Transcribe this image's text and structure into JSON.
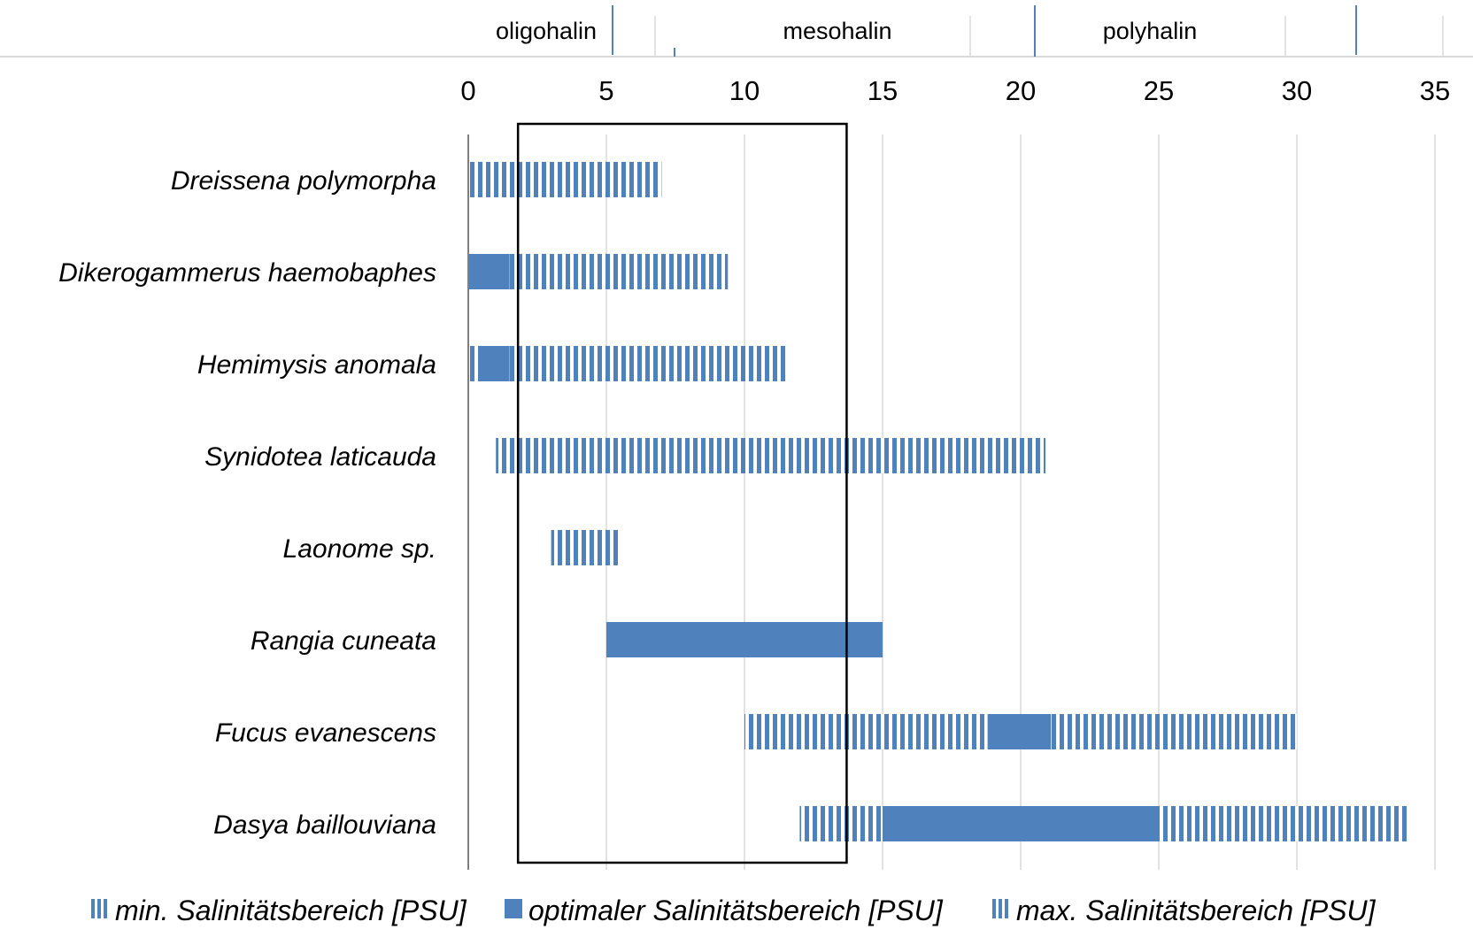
{
  "chart_data": {
    "type": "bar",
    "orientation": "horizontal-floating-range",
    "title": "",
    "xlabel": "",
    "ylabel": "",
    "xlim": [
      0,
      35
    ],
    "x_ticks": [
      "0",
      "5",
      "10",
      "15",
      "20",
      "25",
      "30",
      "35"
    ],
    "grid": "vertical",
    "legend_position": "bottom",
    "zones": [
      "oligohalin",
      "mesohalin",
      "polyhalin"
    ],
    "highlight_box": {
      "x_from": 1.8,
      "x_to": 13.7
    },
    "categories": [
      "Dreissena polymorpha",
      "Dikerogammerus haemobaphes",
      "Hemimysis anomala",
      "Synidotea laticauda",
      "Laonome sp.",
      "Rangia cuneata",
      "Fucus evanescens",
      "Dasya baillouviana"
    ],
    "series": [
      {
        "name": "min. Salinitätsbereich [PSU]",
        "style": "hatched",
        "ranges": [
          [
            0,
            1.7
          ],
          [
            0,
            0
          ],
          [
            0,
            0.4
          ],
          [
            1,
            13.8
          ],
          [
            3,
            3.5
          ],
          null,
          [
            10,
            13.8
          ],
          [
            12,
            15
          ]
        ]
      },
      {
        "name": "optimaler Salinitätsbereich [PSU]",
        "style": "solid",
        "ranges": [
          null,
          [
            0,
            1.5
          ],
          [
            0.4,
            1.5
          ],
          null,
          null,
          [
            5,
            15
          ],
          [
            18.8,
            21.1
          ],
          [
            15,
            25
          ]
        ]
      },
      {
        "name": "max. Salinitätsbereich [PSU]",
        "style": "hatched",
        "ranges": [
          [
            1.7,
            7
          ],
          [
            1.5,
            9.4
          ],
          [
            1.5,
            11.5
          ],
          [
            13.8,
            20.9
          ],
          [
            3.5,
            5.5
          ],
          null,
          [
            [
              13.8,
              18.8
            ],
            [
              21.1,
              30
            ]
          ],
          [
            25,
            34
          ]
        ]
      }
    ],
    "colors": {
      "bar": "#4f81bd",
      "grid": "#d9d9d9",
      "axis": "#7f7f7f",
      "box": "#000000"
    }
  }
}
